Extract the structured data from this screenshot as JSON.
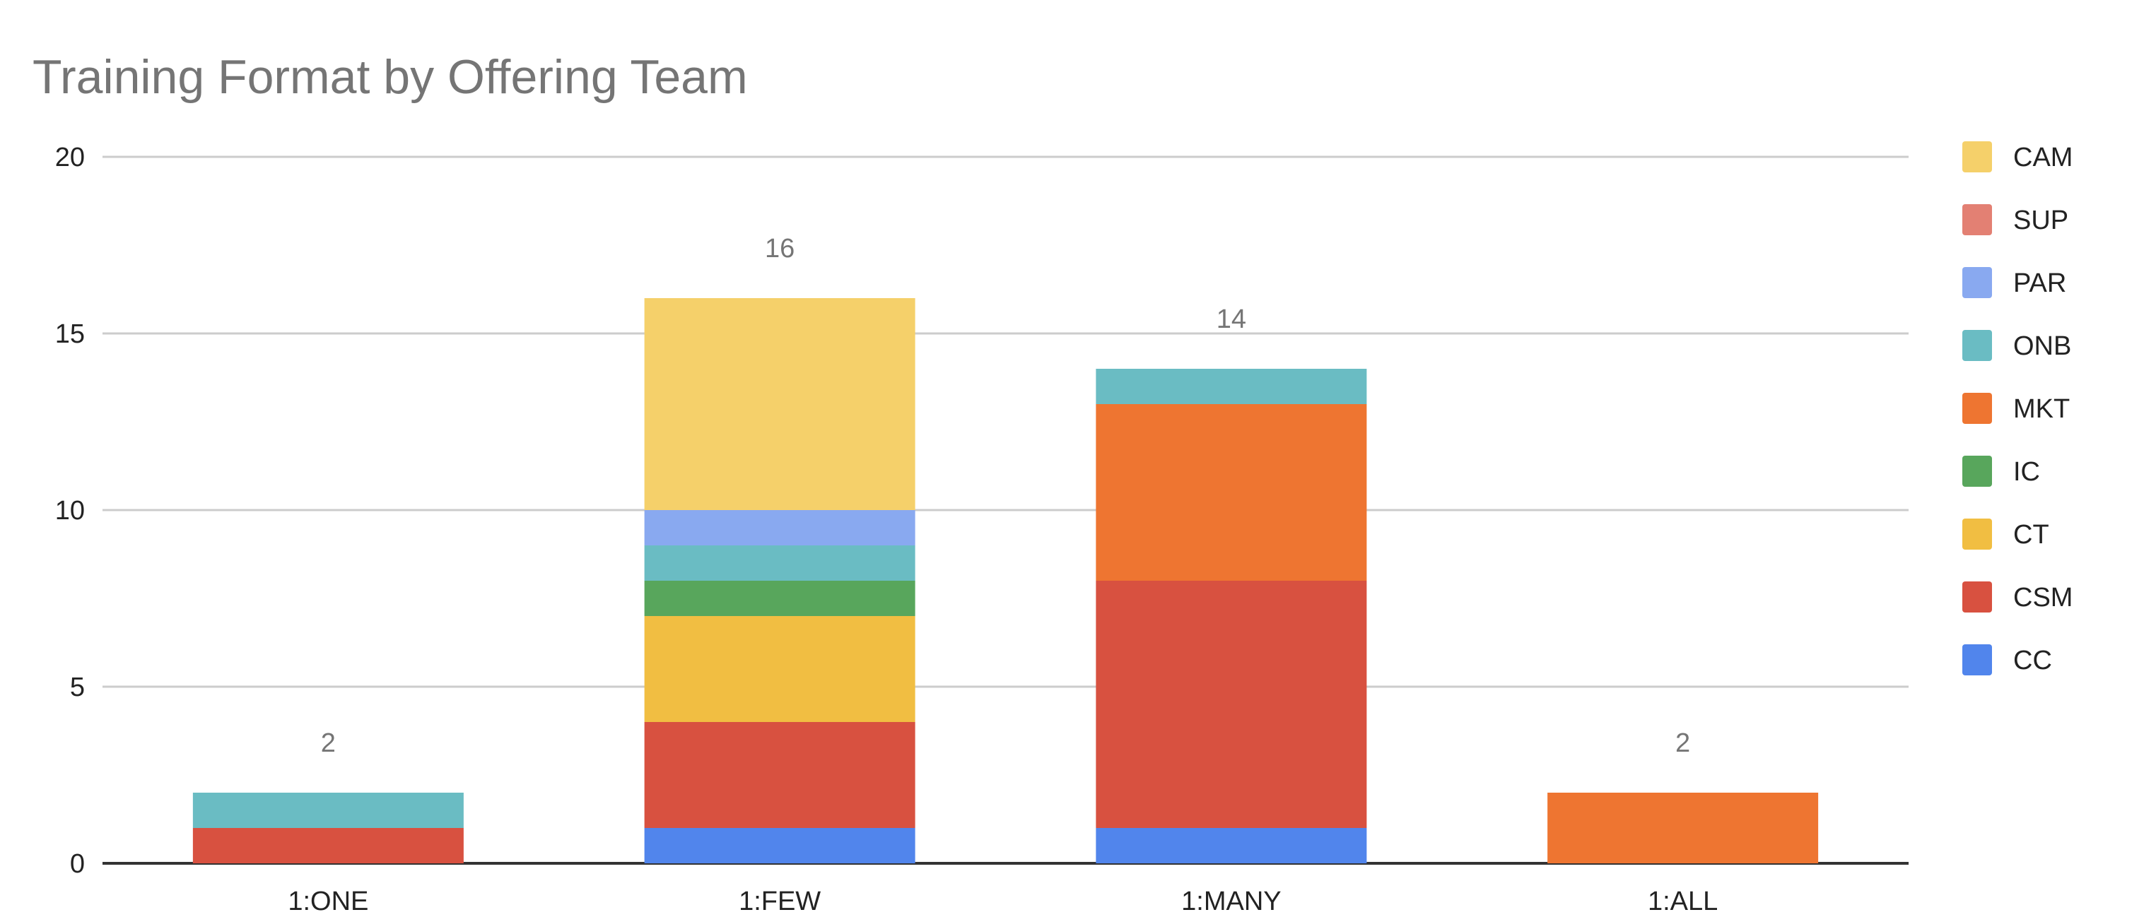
{
  "chart_data": {
    "type": "bar",
    "stacked": true,
    "title": "Training Format by Offering Team",
    "xlabel": "",
    "ylabel": "",
    "ylim": [
      0,
      20
    ],
    "yticks": [
      "0",
      "5",
      "10",
      "15",
      "20"
    ],
    "grid": true,
    "legend_position": "right",
    "categories": [
      "1:ONE",
      "1:FEW",
      "1:MANY",
      "1:ALL"
    ],
    "totals": [
      "2",
      "16",
      "14",
      "2"
    ],
    "series": [
      {
        "name": "CC",
        "color": "#5185EC",
        "values": [
          0,
          1,
          1,
          0
        ]
      },
      {
        "name": "CSM",
        "color": "#D85140",
        "values": [
          1,
          3,
          7,
          0
        ]
      },
      {
        "name": "CT",
        "color": "#F1BE42",
        "values": [
          0,
          3,
          0,
          0
        ]
      },
      {
        "name": "IC",
        "color": "#58A65C",
        "values": [
          0,
          1,
          0,
          0
        ]
      },
      {
        "name": "MKT",
        "color": "#EE7531",
        "values": [
          0,
          0,
          5,
          2
        ]
      },
      {
        "name": "ONB",
        "color": "#6ABCC3",
        "values": [
          1,
          1,
          1,
          0
        ]
      },
      {
        "name": "PAR",
        "color": "#89A9F0",
        "values": [
          0,
          1,
          0,
          0
        ]
      },
      {
        "name": "SUP",
        "color": "#E38073",
        "values": [
          0,
          0,
          0,
          0
        ]
      },
      {
        "name": "CAM",
        "color": "#F5D06A",
        "values": [
          0,
          6,
          0,
          0
        ]
      }
    ]
  }
}
